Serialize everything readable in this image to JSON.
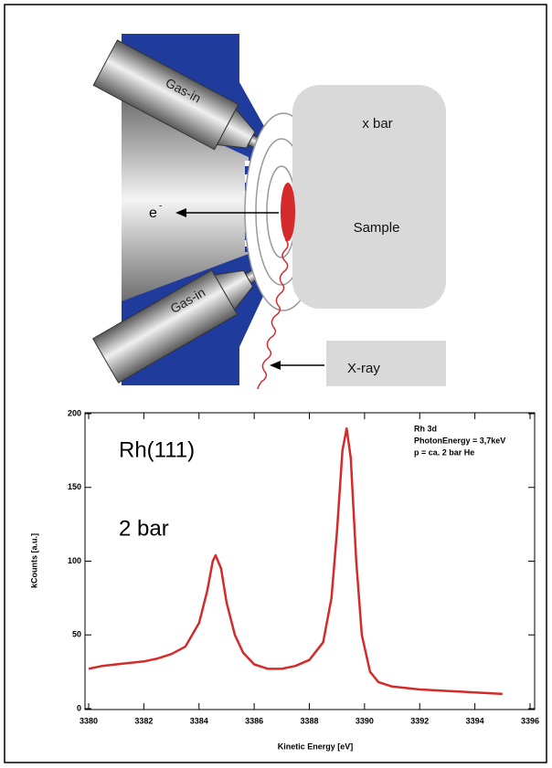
{
  "diagram": {
    "gas_in_top": "Gas-in",
    "gas_in_bottom": "Gas-in",
    "electron": "e",
    "electron_charge": "-",
    "pressure": "x bar",
    "sample": "Sample",
    "xray": "X-ray"
  },
  "chart_data": {
    "type": "line",
    "xlabel": "Kinetic Energy [eV]",
    "ylabel": "kCounts [a.u.]",
    "annotations": [
      "Rh(111)",
      "2 bar"
    ],
    "info": [
      "Rh 3d",
      "PhotonEnergy = 3,7keV",
      "p = ca. 2 bar He"
    ],
    "x": [
      3380,
      3380.5,
      3381,
      3381.5,
      3382,
      3382.5,
      3383,
      3383.5,
      3384,
      3384.3,
      3384.5,
      3384.6,
      3384.8,
      3385,
      3385.3,
      3385.6,
      3386,
      3386.5,
      3387,
      3387.5,
      3388,
      3388.5,
      3388.8,
      3389,
      3389.2,
      3389.35,
      3389.5,
      3389.7,
      3389.9,
      3390.2,
      3390.5,
      3391,
      3392,
      3393,
      3394,
      3395
    ],
    "values": [
      27,
      29,
      30,
      31,
      32,
      34,
      37,
      42,
      58,
      80,
      100,
      104,
      95,
      72,
      50,
      38,
      30,
      27,
      27,
      29,
      33,
      45,
      75,
      120,
      175,
      190,
      170,
      100,
      50,
      25,
      18,
      15,
      13,
      12,
      11,
      10
    ],
    "color": "#d42a2a",
    "xlim": [
      3380,
      3396
    ],
    "xticks": [
      3380,
      3382,
      3384,
      3386,
      3388,
      3390,
      3392,
      3394,
      3396
    ],
    "ylim": [
      0,
      200
    ],
    "yticks": [
      0,
      50,
      100,
      150,
      200
    ]
  }
}
